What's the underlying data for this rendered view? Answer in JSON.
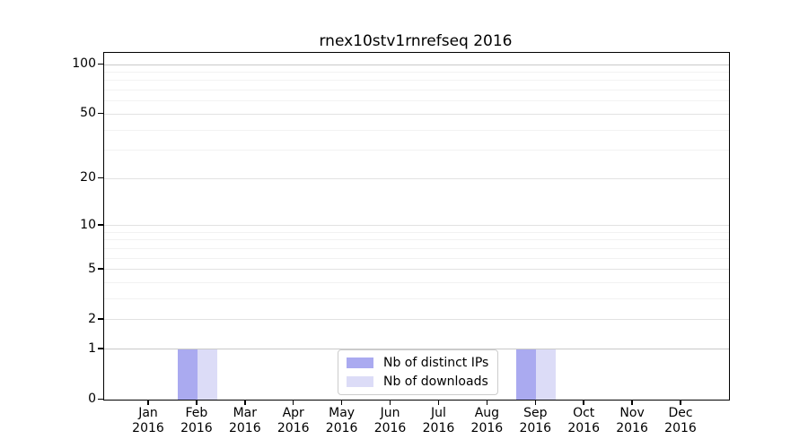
{
  "chart_data": {
    "type": "bar",
    "title": "rnex10stv1rnrefseq 2016",
    "categories": [
      "Jan 2016",
      "Feb 2016",
      "Mar 2016",
      "Apr 2016",
      "May 2016",
      "Jun 2016",
      "Jul 2016",
      "Aug 2016",
      "Sep 2016",
      "Oct 2016",
      "Nov 2016",
      "Dec 2016"
    ],
    "series": [
      {
        "name": "Nb of distinct IPs",
        "color": "#aaaaf0",
        "values": [
          0,
          1,
          0,
          0,
          0,
          0,
          0,
          0,
          1,
          0,
          0,
          0
        ]
      },
      {
        "name": "Nb of downloads",
        "color": "#dcdcf7",
        "values": [
          0,
          1,
          0,
          0,
          0,
          0,
          0,
          0,
          1,
          0,
          0,
          0
        ]
      }
    ],
    "xlabel": "",
    "ylabel": "",
    "yscale": "log1p",
    "ylim": [
      0,
      118
    ],
    "y_major_ticks": [
      0,
      1,
      2,
      5,
      10,
      20,
      50,
      100
    ],
    "y_minor_ticks": [
      3,
      4,
      6,
      7,
      8,
      9,
      30,
      40,
      60,
      70,
      80,
      90
    ],
    "grid": true,
    "legend_position": "lower center"
  },
  "colors": {
    "axis": "#000000",
    "grid_major_strong": "#c9c9c9",
    "grid_major": "#e2e2e2",
    "grid_minor": "#f2f2f2",
    "legend_border": "#cccccc",
    "background": "#ffffff"
  }
}
